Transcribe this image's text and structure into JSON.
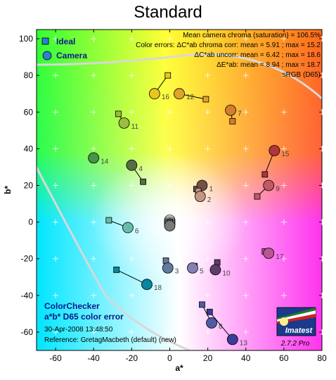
{
  "title": "Standard",
  "chart_data": {
    "type": "scatter",
    "title": "Standard",
    "xlabel": "a*",
    "ylabel": "b*",
    "xlim": [
      -70,
      80
    ],
    "ylim": [
      -70,
      105
    ],
    "xticks": [
      -60,
      -40,
      -20,
      0,
      20,
      40,
      60,
      80
    ],
    "yticks": [
      -60,
      -40,
      -20,
      0,
      20,
      40,
      60,
      80,
      100
    ],
    "grid": "plus-marks",
    "legend": {
      "placement": "top-left",
      "entries": [
        {
          "label": "Ideal",
          "marker": "square"
        },
        {
          "label": "Camera",
          "marker": "circle"
        }
      ]
    },
    "stats": [
      "Mean camera chroma (saturation) = 106.5%",
      "Color errors: ΔC*ab chroma corr:  mean = 5.91 ;  max = 15.2",
      "ΔC*ab uncorr:  mean = 6.42 ;  max = 18.6",
      "ΔE*ab:  mean = 8.94 ;  max = 18.7",
      "sRGB (D65)"
    ],
    "block": {
      "line1": "ColorChecker",
      "line2": "a*b* D65 color error",
      "line3": "30-Apr-2008 13:48:50",
      "line4": "Reference: GretagMacbeth (default) (new)"
    },
    "logo": {
      "name": "Imatest",
      "version": "2.7.2  Pro"
    },
    "patches": [
      {
        "id": "1",
        "ideal": [
          14,
          18
        ],
        "camera": [
          17,
          20
        ],
        "color": "#735244"
      },
      {
        "id": "2",
        "ideal": [
          15,
          17
        ],
        "camera": [
          16,
          14
        ],
        "color": "#c29682"
      },
      {
        "id": "3",
        "ideal": [
          -2,
          -21
        ],
        "camera": [
          -1,
          -25
        ],
        "color": "#627a9d"
      },
      {
        "id": "4",
        "ideal": [
          -14,
          22
        ],
        "camera": [
          -20,
          31
        ],
        "color": "#576c43"
      },
      {
        "id": "5",
        "ideal": [
          13,
          -24
        ],
        "camera": [
          12,
          -25
        ],
        "color": "#8580b1"
      },
      {
        "id": "6",
        "ideal": [
          -32,
          1
        ],
        "camera": [
          -22,
          -3
        ],
        "color": "#67bdaa"
      },
      {
        "id": "7",
        "ideal": [
          33,
          55
        ],
        "camera": [
          32,
          61
        ],
        "color": "#d67e2c"
      },
      {
        "id": "8",
        "ideal": [
          17,
          -45
        ],
        "camera": [
          22,
          -55
        ],
        "color": "#505ba6"
      },
      {
        "id": "9",
        "ideal": [
          46,
          14
        ],
        "camera": [
          52,
          20
        ],
        "color": "#c15a63"
      },
      {
        "id": "10",
        "ideal": [
          25,
          -22
        ],
        "camera": [
          24,
          -26
        ],
        "color": "#5e3c6c"
      },
      {
        "id": "11",
        "ideal": [
          -27,
          59
        ],
        "camera": [
          -24,
          54
        ],
        "color": "#9dbc40"
      },
      {
        "id": "12",
        "ideal": [
          19,
          67
        ],
        "camera": [
          5,
          70
        ],
        "color": "#e0a32e"
      },
      {
        "id": "13",
        "ideal": [
          21,
          -49
        ],
        "camera": [
          33,
          -64
        ],
        "color": "#383d96"
      },
      {
        "id": "14",
        "ideal": [
          -40,
          34
        ],
        "camera": [
          -40,
          35
        ],
        "color": "#469449"
      },
      {
        "id": "15",
        "ideal": [
          50,
          26
        ],
        "camera": [
          55,
          39
        ],
        "color": "#af363c"
      },
      {
        "id": "16",
        "ideal": [
          -1,
          80
        ],
        "camera": [
          -8,
          70
        ],
        "color": "#e7c71f"
      },
      {
        "id": "17",
        "ideal": [
          50,
          -16
        ],
        "camera": [
          52,
          -17
        ],
        "color": "#bb5695"
      },
      {
        "id": "18",
        "ideal": [
          -28,
          -26
        ],
        "camera": [
          -12,
          -34
        ],
        "color": "#0885a1"
      },
      {
        "id": "",
        "ideal": [
          0,
          0
        ],
        "camera": [
          0,
          1
        ],
        "color": "#f3f3f2"
      },
      {
        "id": "",
        "ideal": [
          0,
          0
        ],
        "camera": [
          0,
          0
        ],
        "color": "#c8c8c8"
      },
      {
        "id": "",
        "ideal": [
          0,
          0
        ],
        "camera": [
          0,
          -1
        ],
        "color": "#a0a0a0"
      },
      {
        "id": "",
        "ideal": [
          0,
          0
        ],
        "camera": [
          0,
          -2
        ],
        "color": "#7a7a79"
      }
    ]
  }
}
